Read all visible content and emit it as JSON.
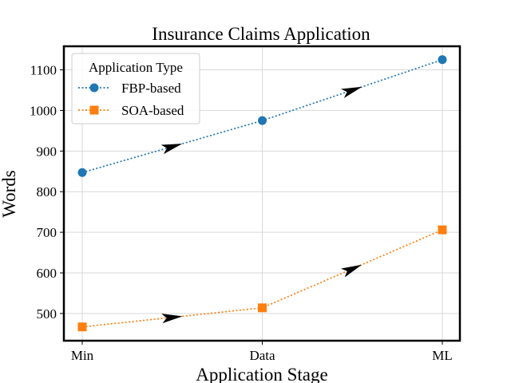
{
  "chart_data": {
    "type": "line",
    "title": "Insurance Claims Application",
    "xlabel": "Application Stage",
    "ylabel": "Words",
    "categories": [
      "Min",
      "Data",
      "ML"
    ],
    "ylim": [
      433,
      1158
    ],
    "yticks": [
      500,
      600,
      700,
      800,
      900,
      1000,
      1100
    ],
    "grid": true,
    "legend": {
      "title": "Application Type",
      "placement": "top-left"
    },
    "series": [
      {
        "name": "FBP-based",
        "values": [
          847,
          975,
          1125
        ],
        "color": "#1f77b4",
        "marker": "circle",
        "linestyle": "dotted"
      },
      {
        "name": "SOA-based",
        "values": [
          467,
          514,
          706
        ],
        "color": "#ff7f0e",
        "marker": "square",
        "linestyle": "dotted"
      }
    ],
    "annotations": "black arrowheads at segment midpoints indicating direction of progression"
  }
}
